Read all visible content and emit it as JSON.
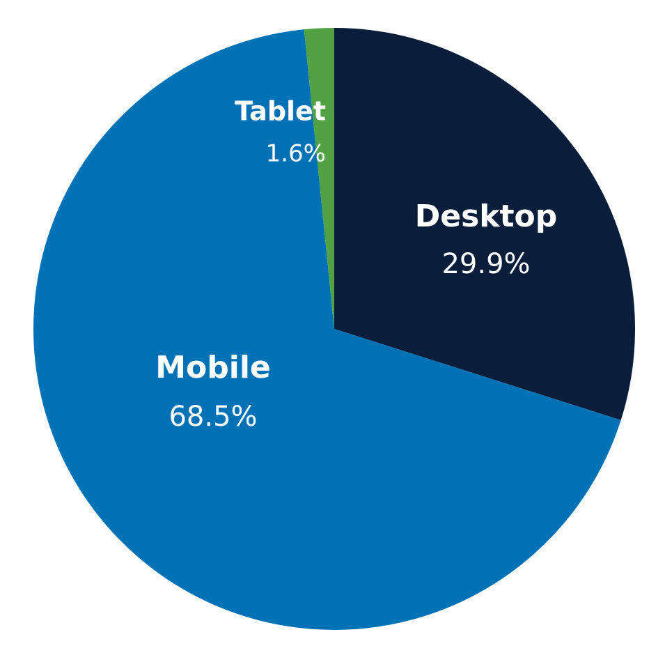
{
  "chart_data": {
    "type": "pie",
    "categories": [
      "Desktop",
      "Mobile",
      "Tablet"
    ],
    "values": [
      29.9,
      68.5,
      1.6
    ],
    "value_labels": [
      "29.9%",
      "68.5%",
      "1.6%"
    ],
    "colors": [
      "#0a1e3c",
      "#0072b5",
      "#52a244"
    ]
  }
}
